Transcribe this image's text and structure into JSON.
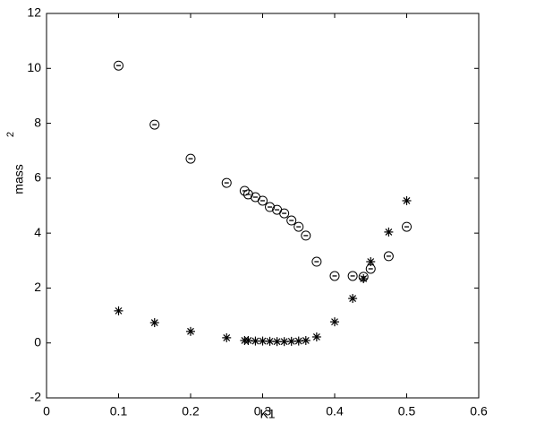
{
  "chart_data": {
    "type": "scatter",
    "xlabel": "K1",
    "ylabel": "mass",
    "ylabel_exponent": "2",
    "xlim": [
      0,
      0.6
    ],
    "ylim": [
      -2,
      12
    ],
    "xticks": [
      0,
      0.1,
      0.2,
      0.3,
      0.4,
      0.5,
      0.6
    ],
    "yticks": [
      -2,
      0,
      2,
      4,
      6,
      8,
      10,
      12
    ],
    "grid": false,
    "series": [
      {
        "marker": "circle",
        "color": "#000000",
        "x": [
          0.1,
          0.15,
          0.2,
          0.25,
          0.275,
          0.28,
          0.29,
          0.3,
          0.31,
          0.32,
          0.33,
          0.34,
          0.35,
          0.36,
          0.375,
          0.4,
          0.425,
          0.44,
          0.45,
          0.475,
          0.5
        ],
        "values": [
          10.1,
          7.95,
          6.71,
          5.83,
          5.54,
          5.41,
          5.31,
          5.18,
          4.95,
          4.85,
          4.72,
          4.46,
          4.23,
          3.91,
          2.96,
          2.44,
          2.44,
          2.41,
          2.7,
          3.16,
          4.23
        ]
      },
      {
        "marker": "asterisk",
        "color": "#000000",
        "x": [
          0.1,
          0.15,
          0.2,
          0.25,
          0.275,
          0.28,
          0.29,
          0.3,
          0.31,
          0.32,
          0.33,
          0.34,
          0.35,
          0.36,
          0.375,
          0.4,
          0.425,
          0.44,
          0.45,
          0.475,
          0.5
        ],
        "values": [
          1.17,
          0.74,
          0.42,
          0.19,
          0.09,
          0.09,
          0.07,
          0.07,
          0.06,
          0.05,
          0.05,
          0.06,
          0.07,
          0.09,
          0.22,
          0.77,
          1.62,
          2.34,
          2.96,
          4.04,
          5.18
        ]
      }
    ]
  }
}
